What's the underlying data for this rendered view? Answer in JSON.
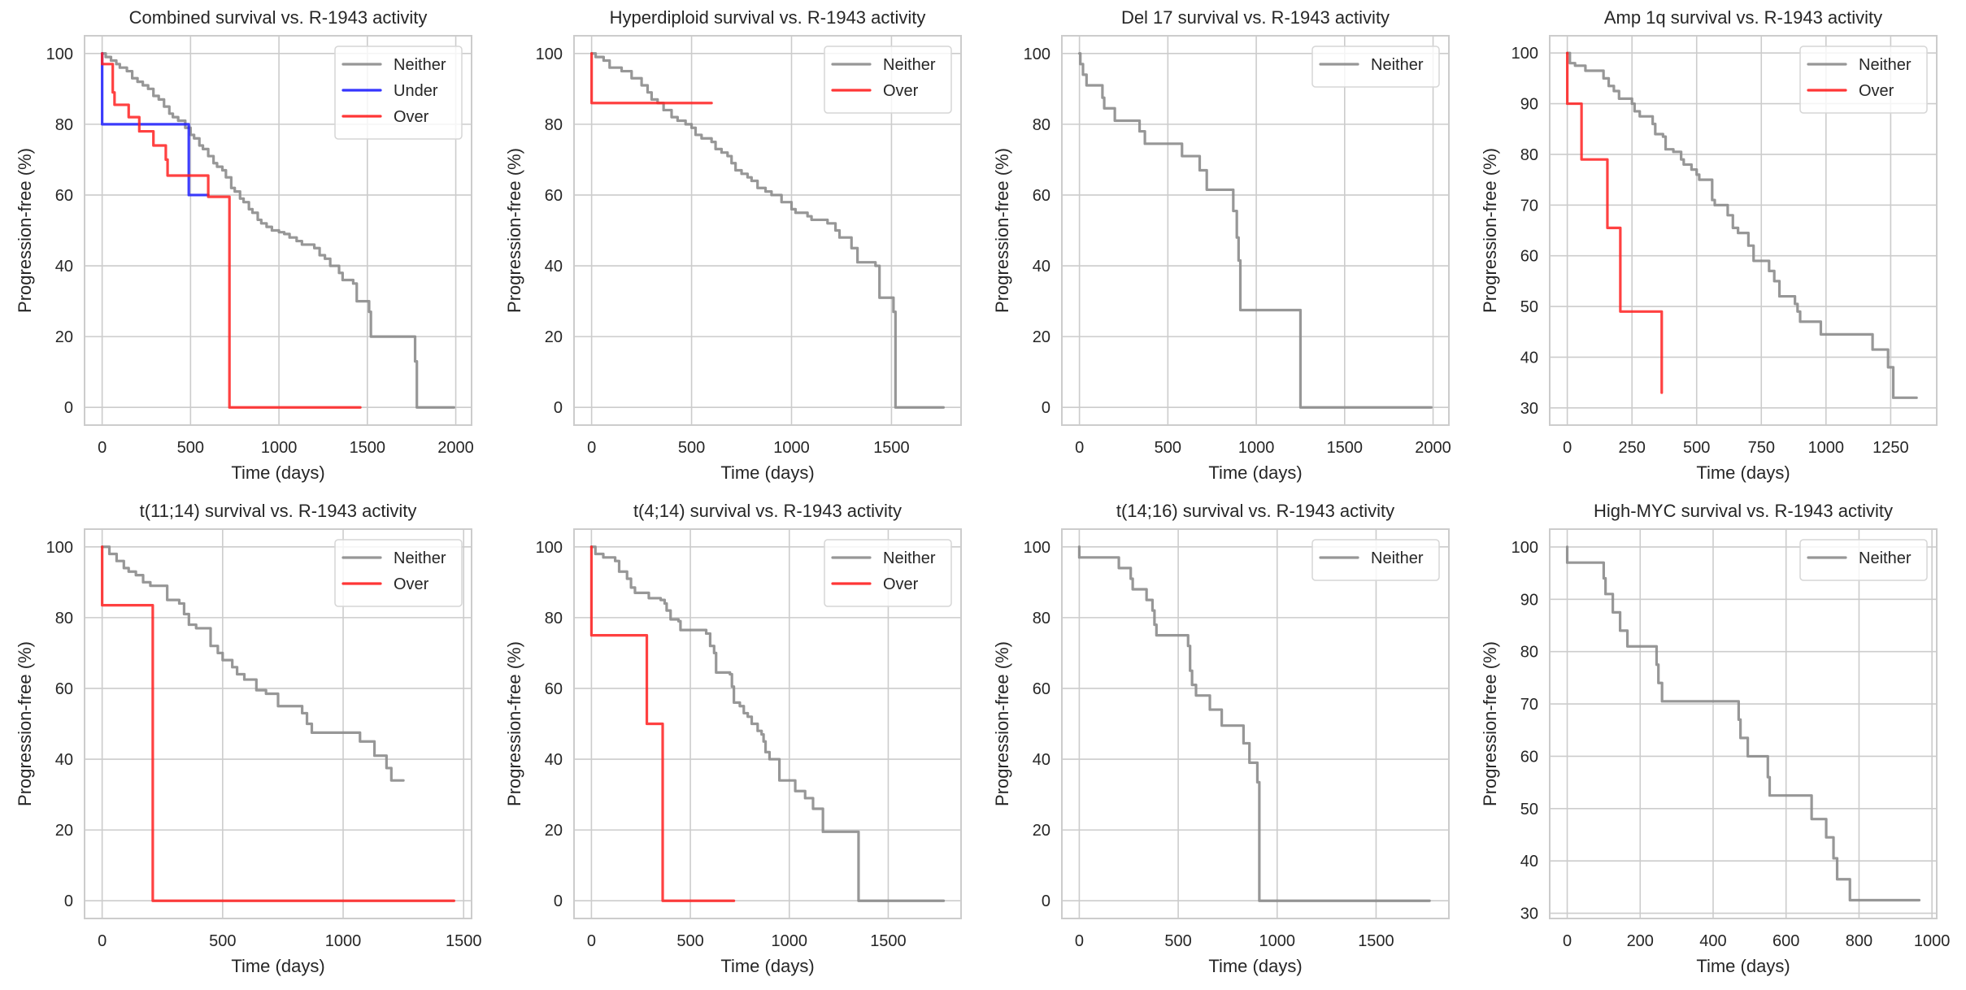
{
  "figure": {
    "series_colors": {
      "Neither": "#8c8c8c",
      "Under": "#1f1fff",
      "Over": "#ff2020"
    }
  },
  "chart_data": [
    {
      "type": "line",
      "title": "Combined survival vs. R-1943 activity",
      "xlabel": "Time (days)",
      "ylabel": "Progression-free (%)",
      "xlim": [
        -99.5,
        2089.5
      ],
      "ylim": [
        -5,
        105
      ],
      "xticks": [
        0,
        500,
        1000,
        1500,
        2000
      ],
      "yticks": [
        0,
        20,
        40,
        60,
        80,
        100
      ],
      "grid": true,
      "legend": "top-right",
      "series": [
        {
          "name": "Neither",
          "x": [
            0,
            20,
            50,
            80,
            100,
            140,
            170,
            200,
            230,
            260,
            290,
            320,
            350,
            380,
            400,
            430,
            470,
            500,
            520,
            550,
            570,
            600,
            630,
            650,
            680,
            700,
            730,
            750,
            780,
            800,
            830,
            850,
            880,
            900,
            930,
            960,
            1000,
            1030,
            1060,
            1100,
            1130,
            1160,
            1200,
            1230,
            1260,
            1290,
            1310,
            1340,
            1360,
            1380,
            1420,
            1440,
            1500,
            1510,
            1520,
            1760,
            1770,
            1780,
            1990
          ],
          "y": [
            100,
            99,
            98,
            97,
            96,
            95,
            93,
            92,
            91,
            90,
            88,
            87,
            85,
            83,
            82,
            81,
            79,
            77,
            76,
            74,
            73,
            71,
            69,
            68,
            67,
            65,
            62,
            61,
            59,
            58,
            56,
            55,
            53,
            52,
            51,
            50,
            49.5,
            49,
            48,
            47,
            46,
            46,
            45,
            43,
            42,
            40,
            40,
            38,
            36,
            36,
            35,
            30,
            30,
            27,
            20,
            20,
            13,
            0,
            0
          ]
        },
        {
          "name": "Under",
          "x": [
            0,
            0,
            490,
            490,
            600
          ],
          "y": [
            100,
            80,
            80,
            60,
            60
          ]
        },
        {
          "name": "Over",
          "x": [
            0,
            0,
            50,
            60,
            60,
            70,
            150,
            150,
            210,
            210,
            290,
            290,
            360,
            360,
            370,
            370,
            600,
            600,
            720,
            720,
            1460
          ],
          "y": [
            100,
            97,
            97,
            94,
            89,
            85.5,
            85.5,
            82,
            82,
            78,
            78,
            74,
            74,
            70,
            70,
            65.5,
            65.5,
            59.5,
            59.5,
            0,
            0
          ]
        }
      ]
    },
    {
      "type": "line",
      "title": "Hyperdiploid survival vs. R-1943 activity",
      "xlabel": "Time (days)",
      "ylabel": "Progression-free (%)",
      "xlim": [
        -88,
        1848
      ],
      "ylim": [
        -5,
        105
      ],
      "xticks": [
        0,
        500,
        1000,
        1500
      ],
      "yticks": [
        0,
        20,
        40,
        60,
        80,
        100
      ],
      "grid": true,
      "legend": "top-right",
      "series": [
        {
          "name": "Neither",
          "x": [
            0,
            20,
            60,
            90,
            150,
            200,
            250,
            280,
            300,
            330,
            360,
            400,
            430,
            470,
            500,
            520,
            550,
            600,
            620,
            650,
            680,
            700,
            720,
            750,
            780,
            800,
            830,
            870,
            900,
            950,
            1000,
            1020,
            1050,
            1080,
            1100,
            1160,
            1180,
            1220,
            1240,
            1290,
            1300,
            1330,
            1420,
            1440,
            1500,
            1510,
            1520,
            1760
          ],
          "y": [
            100,
            99,
            98,
            96,
            95,
            93,
            91,
            89,
            87,
            86,
            84,
            82,
            81,
            80,
            79,
            77,
            76,
            75,
            73,
            72,
            71,
            69,
            67,
            66,
            65,
            64,
            62,
            61,
            60,
            58,
            56,
            55,
            55,
            54,
            53,
            53,
            52,
            50,
            48,
            48,
            45,
            41,
            40,
            31,
            31,
            27,
            0,
            0
          ]
        },
        {
          "name": "Over",
          "x": [
            0,
            0,
            600
          ],
          "y": [
            100,
            86,
            86
          ]
        }
      ]
    },
    {
      "type": "line",
      "title": "Del 17 survival vs. R-1943 activity",
      "xlabel": "Time (days)",
      "ylabel": "Progression-free (%)",
      "xlim": [
        -99.5,
        2089.5
      ],
      "ylim": [
        -5,
        105
      ],
      "xticks": [
        0,
        500,
        1000,
        1500,
        2000
      ],
      "yticks": [
        0,
        20,
        40,
        60,
        80,
        100
      ],
      "grid": true,
      "legend": "top-right",
      "series": [
        {
          "name": "Neither",
          "x": [
            0,
            5,
            20,
            40,
            130,
            140,
            200,
            340,
            370,
            580,
            680,
            720,
            870,
            890,
            900,
            910,
            1250,
            1990
          ],
          "y": [
            100,
            97,
            94,
            91,
            87.5,
            84.5,
            81,
            78,
            74.5,
            71,
            67,
            61.5,
            55.5,
            48,
            41.5,
            27.5,
            0,
            0
          ]
        }
      ]
    },
    {
      "type": "line",
      "title": "Amp 1q survival vs. R-1943 activity",
      "xlabel": "Time (days)",
      "ylabel": "Progression-free (%)",
      "xlim": [
        -68,
        1428
      ],
      "ylim": [
        26.6,
        103.4
      ],
      "xticks": [
        0,
        250,
        500,
        750,
        1000,
        1250
      ],
      "yticks": [
        30,
        40,
        50,
        60,
        70,
        80,
        90
      ],
      "ytick_labels_extra": [
        100
      ],
      "grid": true,
      "legend": "top-right",
      "series": [
        {
          "name": "Neither",
          "x": [
            0,
            10,
            30,
            70,
            140,
            160,
            180,
            200,
            250,
            260,
            280,
            330,
            340,
            370,
            380,
            410,
            440,
            450,
            480,
            500,
            510,
            560,
            570,
            620,
            640,
            660,
            700,
            720,
            740,
            780,
            800,
            820,
            880,
            890,
            900,
            980,
            1180,
            1240,
            1260,
            1350
          ],
          "y": [
            100,
            98,
            97.5,
            96.5,
            95,
            93.5,
            92.5,
            91,
            90,
            88.5,
            87.5,
            86,
            84,
            83.5,
            81,
            80.5,
            79,
            78,
            77,
            76,
            75,
            71,
            70,
            68,
            65.5,
            64.5,
            62,
            59,
            59,
            57,
            55,
            52,
            50.5,
            49,
            47,
            44.5,
            41.5,
            38,
            32,
            32
          ]
        },
        {
          "name": "Over",
          "x": [
            0,
            0,
            55,
            55,
            155,
            155,
            205,
            205,
            365,
            365
          ],
          "y": [
            100,
            90,
            90,
            79,
            79,
            65.5,
            65.5,
            49,
            49,
            33
          ]
        }
      ]
    },
    {
      "type": "line",
      "title": "t(11;14) survival vs. R-1943 activity",
      "xlabel": "Time (days)",
      "ylabel": "Progression-free (%)",
      "xlim": [
        -73,
        1533
      ],
      "ylim": [
        -5,
        105
      ],
      "xticks": [
        0,
        500,
        1000,
        1500
      ],
      "yticks": [
        0,
        20,
        40,
        60,
        80,
        100
      ],
      "grid": true,
      "legend": "top-right",
      "series": [
        {
          "name": "Neither",
          "x": [
            0,
            30,
            60,
            90,
            110,
            140,
            170,
            200,
            250,
            270,
            320,
            340,
            360,
            390,
            430,
            450,
            480,
            500,
            540,
            560,
            590,
            640,
            680,
            730,
            830,
            850,
            870,
            1070,
            1130,
            1180,
            1200,
            1250
          ],
          "y": [
            100,
            98,
            96,
            94,
            93,
            92,
            90,
            89,
            89,
            85,
            84,
            81,
            78,
            77,
            77,
            72,
            70,
            68,
            66,
            64,
            62.5,
            59.5,
            58.5,
            55,
            53,
            50,
            47.5,
            45,
            41,
            37.5,
            34,
            34
          ]
        },
        {
          "name": "Over",
          "x": [
            0,
            0,
            210,
            210,
            1460
          ],
          "y": [
            100,
            83.5,
            83.5,
            0,
            0
          ]
        }
      ]
    },
    {
      "type": "line",
      "title": "t(4;14) survival vs. R-1943 activity",
      "xlabel": "Time (days)",
      "ylabel": "Progression-free (%)",
      "xlim": [
        -88,
        1868
      ],
      "ylim": [
        -5,
        105
      ],
      "xticks": [
        0,
        500,
        1000,
        1500
      ],
      "yticks": [
        0,
        20,
        40,
        60,
        80,
        100
      ],
      "grid": true,
      "legend": "top-right",
      "series": [
        {
          "name": "Neither",
          "x": [
            0,
            20,
            60,
            120,
            140,
            180,
            200,
            220,
            290,
            350,
            370,
            380,
            400,
            440,
            450,
            580,
            600,
            620,
            630,
            700,
            710,
            720,
            750,
            770,
            790,
            810,
            840,
            860,
            870,
            880,
            900,
            950,
            990,
            1030,
            1080,
            1120,
            1170,
            1350,
            1780
          ],
          "y": [
            100,
            98,
            97,
            96,
            93,
            91,
            88.5,
            87,
            85.5,
            85,
            84,
            82,
            79.5,
            79,
            76.5,
            75.5,
            72,
            70,
            64.5,
            64,
            60.5,
            56,
            55,
            53,
            52,
            50,
            48,
            47,
            45,
            42,
            40,
            34,
            34,
            31,
            29,
            26,
            19.5,
            0,
            0
          ]
        },
        {
          "name": "Over",
          "x": [
            0,
            0,
            280,
            280,
            360,
            360,
            720
          ],
          "y": [
            100,
            75,
            75,
            50,
            50,
            0,
            0
          ]
        }
      ]
    },
    {
      "type": "line",
      "title": "t(14;16) survival vs. R-1943 activity",
      "xlabel": "Time (days)",
      "ylabel": "Progression-free (%)",
      "xlim": [
        -88,
        1868
      ],
      "ylim": [
        -5,
        105
      ],
      "xticks": [
        0,
        500,
        1000,
        1500
      ],
      "yticks": [
        0,
        20,
        40,
        60,
        80,
        100
      ],
      "grid": true,
      "legend": "top-right",
      "series": [
        {
          "name": "Neither",
          "x": [
            0,
            0,
            200,
            260,
            270,
            340,
            370,
            380,
            390,
            550,
            560,
            570,
            590,
            660,
            720,
            830,
            860,
            900,
            910,
            1770
          ],
          "y": [
            100,
            97,
            94,
            91,
            88,
            85,
            82,
            78,
            75,
            72,
            65,
            61,
            58,
            54,
            49.5,
            44.5,
            39,
            33.5,
            0,
            0
          ]
        }
      ]
    },
    {
      "type": "line",
      "title": "High-MYC survival vs. R-1943 activity",
      "xlabel": "Time (days)",
      "ylabel": "Progression-free (%)",
      "xlim": [
        -48,
        1013
      ],
      "ylim": [
        29,
        103.4
      ],
      "xticks": [
        0,
        200,
        400,
        600,
        800,
        1000
      ],
      "yticks": [
        30,
        40,
        50,
        60,
        70,
        80,
        90,
        100
      ],
      "grid": true,
      "legend": "top-right",
      "series": [
        {
          "name": "Neither",
          "x": [
            0,
            0,
            95,
            100,
            105,
            125,
            145,
            165,
            245,
            250,
            260,
            470,
            475,
            495,
            550,
            555,
            560,
            670,
            710,
            730,
            740,
            775,
            965
          ],
          "y": [
            100,
            97,
            97,
            94,
            91,
            87.5,
            84,
            81,
            77.5,
            74,
            70.5,
            67,
            63.5,
            60,
            56,
            52.5,
            52.5,
            48,
            44.5,
            40.5,
            36.5,
            32.5,
            32.5
          ]
        }
      ]
    }
  ]
}
